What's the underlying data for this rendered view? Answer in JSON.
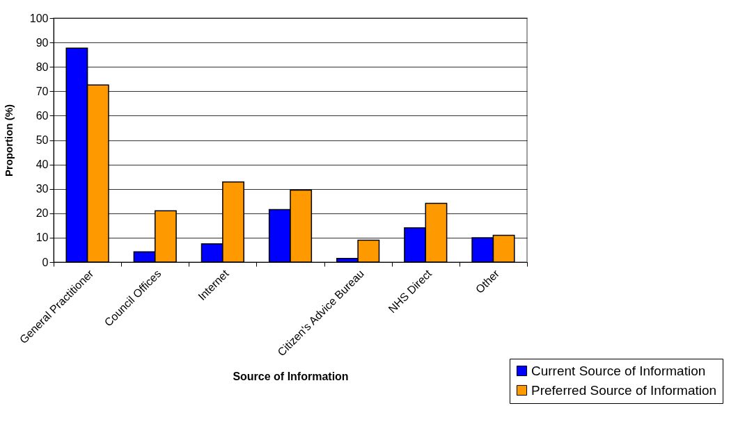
{
  "chart_data": {
    "type": "bar",
    "xlabel": "Source of Information",
    "ylabel": "Proportion (%)",
    "categories": [
      "General Practitioner",
      "Council Offices",
      "Internet",
      null,
      "Citizen's Advice Bureau",
      "NHS Direct",
      "Other"
    ],
    "series": [
      {
        "name": "Current Source of Information",
        "color": "#0000ff",
        "values": [
          87.7,
          4.2,
          7.5,
          21.5,
          1.5,
          14,
          10
        ]
      },
      {
        "name": "Preferred Source of Information",
        "color": "#ff9900",
        "values": [
          72.6,
          21,
          32.8,
          29.5,
          9,
          24.1,
          11
        ]
      }
    ],
    "ylim": [
      0,
      100
    ],
    "yticks": [
      0,
      10,
      20,
      30,
      40,
      50,
      60,
      70,
      80,
      90,
      100
    ],
    "grid": "y",
    "legend": "bottom right"
  }
}
